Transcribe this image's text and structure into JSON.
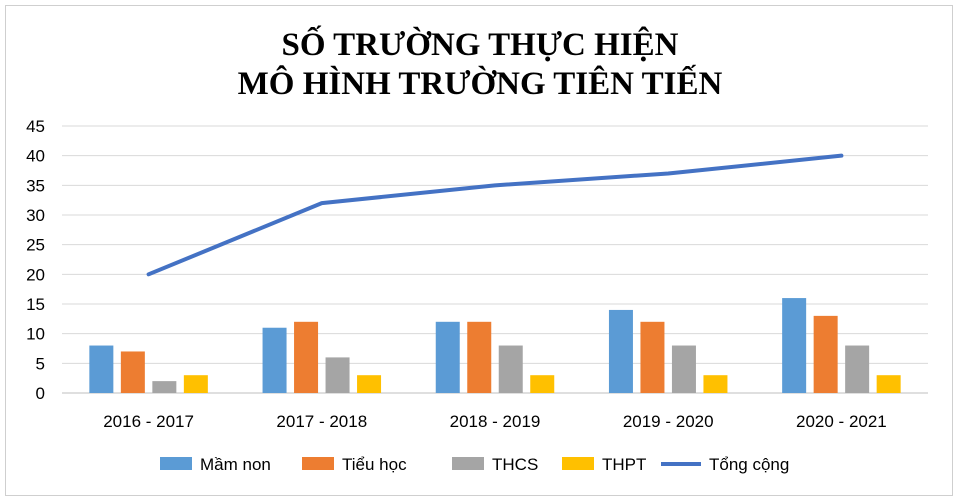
{
  "chart_data": {
    "type": "bar",
    "title_lines": [
      "SỐ TRƯỜNG THỰC HIỆN",
      "MÔ HÌNH TRƯỜNG TIÊN TIẾN"
    ],
    "categories": [
      "2016 - 2017",
      "2017 - 2018",
      "2018 - 2019",
      "2019 - 2020",
      "2020 - 2021"
    ],
    "series": [
      {
        "name": "Mầm non",
        "type": "bar",
        "color": "#5B9BD5",
        "values": [
          8,
          11,
          12,
          14,
          16
        ]
      },
      {
        "name": "Tiểu học",
        "type": "bar",
        "color": "#ED7D31",
        "values": [
          7,
          12,
          12,
          12,
          13
        ]
      },
      {
        "name": "THCS",
        "type": "bar",
        "color": "#A5A5A5",
        "values": [
          2,
          6,
          8,
          8,
          8
        ]
      },
      {
        "name": "THPT",
        "type": "bar",
        "color": "#FFC000",
        "values": [
          3,
          3,
          3,
          3,
          3
        ]
      },
      {
        "name": "Tổng cộng",
        "type": "line",
        "color": "#4472C4",
        "values": [
          20,
          32,
          35,
          37,
          40
        ]
      }
    ],
    "ylim": [
      0,
      45
    ],
    "yticks": [
      0,
      5,
      10,
      15,
      20,
      25,
      30,
      35,
      40,
      45
    ],
    "grid": true,
    "legend": "bottom"
  }
}
